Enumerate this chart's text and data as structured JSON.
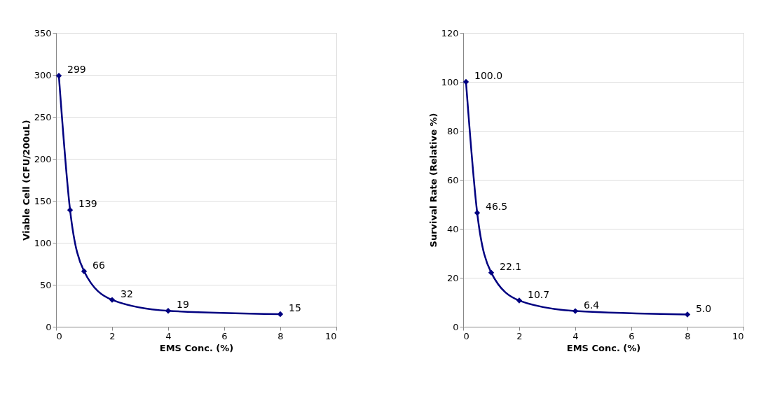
{
  "chart_data": [
    {
      "type": "line",
      "x": [
        0.1,
        0.5,
        1,
        2,
        4,
        8
      ],
      "series": [
        {
          "color": "#000080",
          "values": [
            299,
            139,
            66,
            32,
            19,
            15
          ]
        }
      ],
      "xlabel": "EMS Conc. (%)",
      "ylabel": "Viable Cell (CFU/200uL)",
      "xlim": [
        0,
        10
      ],
      "xticks": [
        0,
        2,
        4,
        6,
        8,
        10
      ],
      "ylim": [
        0,
        350
      ],
      "yticks": [
        0,
        50,
        100,
        150,
        200,
        250,
        300,
        350
      ],
      "grid": "y",
      "marker": "diamond",
      "line_style": "solid",
      "data_labels": true
    },
    {
      "type": "line",
      "x": [
        0.1,
        0.5,
        1,
        2,
        4,
        8
      ],
      "series": [
        {
          "color": "#000080",
          "values": [
            100.0,
            46.5,
            22.1,
            10.7,
            6.4,
            5.0
          ],
          "value_labels": [
            "100.0",
            "46.5",
            "22.1",
            "10.7",
            "6.4",
            "5.0"
          ]
        }
      ],
      "xlabel": "EMS Conc. (%)",
      "ylabel": "Survival Rate (Relative %)",
      "xlim": [
        0,
        10
      ],
      "xticks": [
        0,
        2,
        4,
        6,
        8,
        10
      ],
      "ylim": [
        0,
        120
      ],
      "yticks": [
        0,
        20,
        40,
        60,
        80,
        100,
        120
      ],
      "grid": "y",
      "marker": "diamond",
      "line_style": "solid"
    }
  ]
}
